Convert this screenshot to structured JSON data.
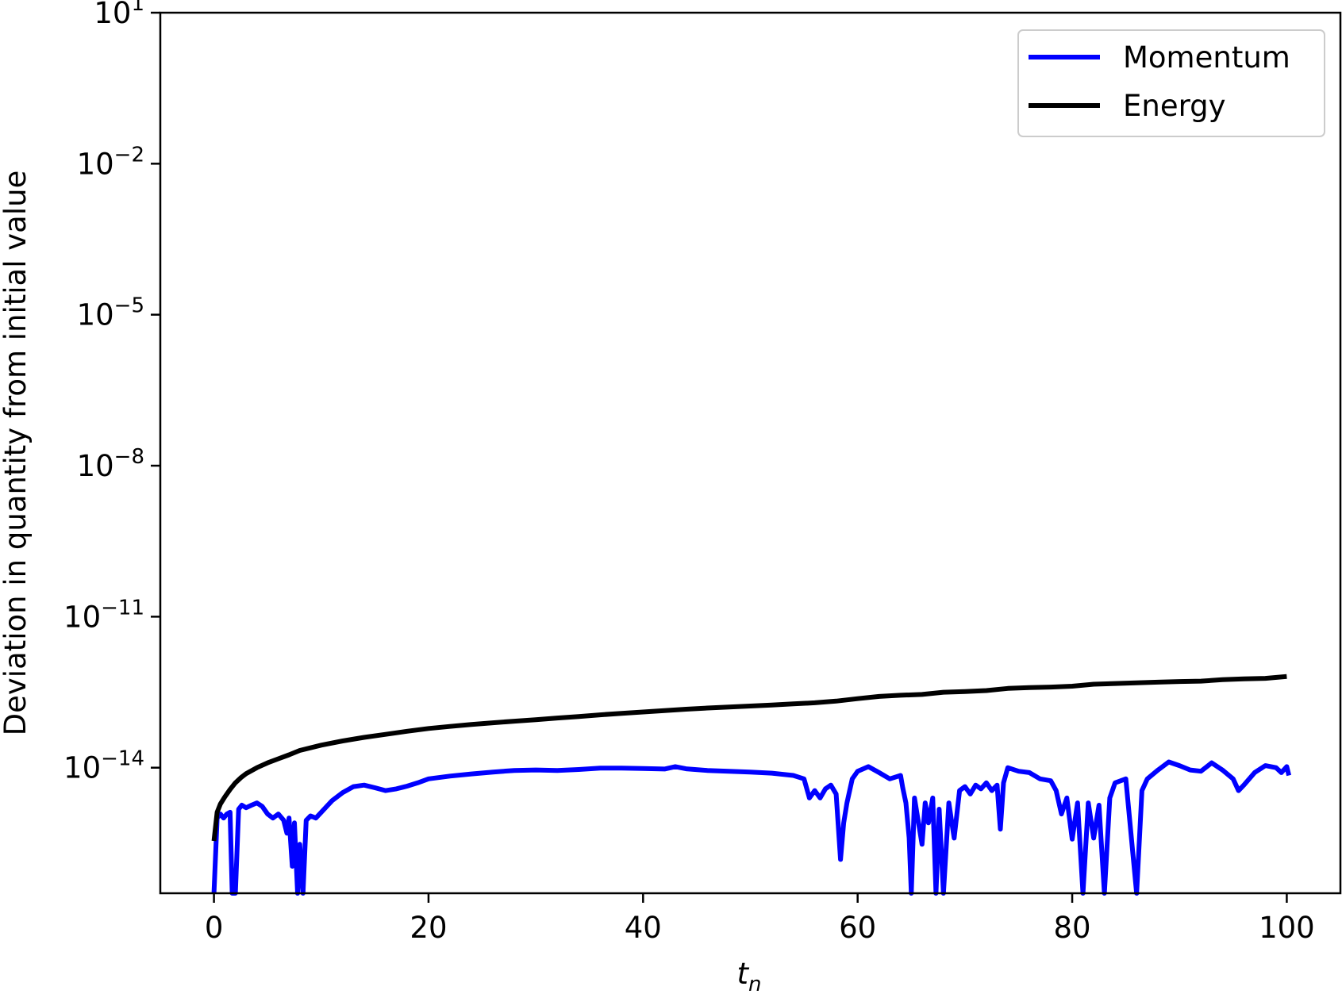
{
  "chart_data": {
    "type": "line",
    "title": "",
    "xlabel": "t",
    "xlabel_sub": "n",
    "ylabel": "Deviation in quantity from initial value",
    "xscale": "linear",
    "yscale": "log",
    "xlim": [
      -5,
      105
    ],
    "ylim": [
      3.2e-17,
      10
    ],
    "grid": false,
    "legend_position": "top-right",
    "x_ticks": [
      {
        "value": 0,
        "label": "0"
      },
      {
        "value": 20,
        "label": "20"
      },
      {
        "value": 40,
        "label": "40"
      },
      {
        "value": 60,
        "label": "60"
      },
      {
        "value": 80,
        "label": "80"
      },
      {
        "value": 100,
        "label": "100"
      }
    ],
    "y_ticks": [
      {
        "value": 10,
        "base": "10",
        "exp": "1"
      },
      {
        "value": 0.01,
        "base": "10",
        "exp": "−2"
      },
      {
        "value": 1e-05,
        "base": "10",
        "exp": "−5"
      },
      {
        "value": 1e-08,
        "base": "10",
        "exp": "−8"
      },
      {
        "value": 1e-11,
        "base": "10",
        "exp": "−11"
      },
      {
        "value": 1e-14,
        "base": "10",
        "exp": "−14"
      }
    ],
    "series": [
      {
        "name": "Momentum",
        "color": "#0000ff",
        "points": [
          [
            0,
            3.2e-17
          ],
          [
            0.3,
            1e-15
          ],
          [
            0.6,
            1.2e-15
          ],
          [
            0.9,
            1e-15
          ],
          [
            1.2,
            1.2e-15
          ],
          [
            1.5,
            1.3e-15
          ],
          [
            1.7,
            3.2e-17
          ],
          [
            2.0,
            3.2e-17
          ],
          [
            2.3,
            1.5e-15
          ],
          [
            2.6,
            1.8e-15
          ],
          [
            3.0,
            1.6e-15
          ],
          [
            3.5,
            1.8e-15
          ],
          [
            4.0,
            2e-15
          ],
          [
            4.5,
            1.7e-15
          ],
          [
            5.0,
            1.2e-15
          ],
          [
            5.5,
            1e-15
          ],
          [
            6.0,
            1.2e-15
          ],
          [
            6.5,
            9e-16
          ],
          [
            6.8,
            5e-16
          ],
          [
            7.0,
            1e-15
          ],
          [
            7.3,
            1.1e-16
          ],
          [
            7.5,
            8e-16
          ],
          [
            7.8,
            3.2e-17
          ],
          [
            8.0,
            3e-16
          ],
          [
            8.3,
            3.2e-17
          ],
          [
            8.6,
            9e-16
          ],
          [
            9.0,
            1.1e-15
          ],
          [
            9.5,
            1e-15
          ],
          [
            10.0,
            1.3e-15
          ],
          [
            11.0,
            2.2e-15
          ],
          [
            12.0,
            3.2e-15
          ],
          [
            13.0,
            4.2e-15
          ],
          [
            14.0,
            4.5e-15
          ],
          [
            15.0,
            4e-15
          ],
          [
            16.0,
            3.5e-15
          ],
          [
            17.0,
            3.8e-15
          ],
          [
            18.0,
            4.3e-15
          ],
          [
            19.0,
            5e-15
          ],
          [
            20.0,
            6e-15
          ],
          [
            22.0,
            6.8e-15
          ],
          [
            24.0,
            7.5e-15
          ],
          [
            26.0,
            8.2e-15
          ],
          [
            28.0,
            8.8e-15
          ],
          [
            30.0,
            9e-15
          ],
          [
            32.0,
            8.8e-15
          ],
          [
            34.0,
            9.2e-15
          ],
          [
            36.0,
            9.8e-15
          ],
          [
            38.0,
            9.8e-15
          ],
          [
            40.0,
            9.6e-15
          ],
          [
            42.0,
            9.4e-15
          ],
          [
            43.0,
            1.05e-14
          ],
          [
            44.0,
            9.5e-15
          ],
          [
            46.0,
            8.8e-15
          ],
          [
            48.0,
            8.5e-15
          ],
          [
            50.0,
            8.2e-15
          ],
          [
            52.0,
            7.8e-15
          ],
          [
            54.0,
            7e-15
          ],
          [
            55.0,
            6e-15
          ],
          [
            55.5,
            2.5e-15
          ],
          [
            56.0,
            3.5e-15
          ],
          [
            56.5,
            2.5e-15
          ],
          [
            57.0,
            3.8e-15
          ],
          [
            57.5,
            4.5e-15
          ],
          [
            58.0,
            3e-15
          ],
          [
            58.4,
            1.5e-16
          ],
          [
            58.7,
            8e-16
          ],
          [
            59.0,
            2e-15
          ],
          [
            59.5,
            6e-15
          ],
          [
            60.0,
            8.5e-15
          ],
          [
            61.0,
            1.05e-14
          ],
          [
            62.0,
            8e-15
          ],
          [
            63.0,
            6e-15
          ],
          [
            64.0,
            7e-15
          ],
          [
            64.2,
            4e-15
          ],
          [
            64.5,
            2e-15
          ],
          [
            64.8,
            4e-16
          ],
          [
            65.0,
            3.2e-17
          ],
          [
            65.3,
            2.5e-15
          ],
          [
            65.6,
            1e-15
          ],
          [
            66.0,
            3e-16
          ],
          [
            66.3,
            2e-15
          ],
          [
            66.6,
            8e-16
          ],
          [
            67.0,
            2.5e-15
          ],
          [
            67.3,
            3.2e-17
          ],
          [
            67.6,
            1.5e-15
          ],
          [
            68.0,
            3.2e-17
          ],
          [
            68.5,
            2e-15
          ],
          [
            69.0,
            4e-16
          ],
          [
            69.5,
            3.5e-15
          ],
          [
            70.0,
            4.2e-15
          ],
          [
            70.5,
            3e-15
          ],
          [
            71.0,
            4.5e-15
          ],
          [
            71.5,
            3.8e-15
          ],
          [
            72.0,
            5e-15
          ],
          [
            72.5,
            3.5e-15
          ],
          [
            73.0,
            4.5e-15
          ],
          [
            73.3,
            6e-16
          ],
          [
            73.6,
            5e-15
          ],
          [
            74.0,
            1e-14
          ],
          [
            75.0,
            8.5e-15
          ],
          [
            76.0,
            8e-15
          ],
          [
            77.0,
            6e-15
          ],
          [
            78.0,
            5.5e-15
          ],
          [
            78.5,
            3.5e-15
          ],
          [
            79.0,
            1.2e-15
          ],
          [
            79.5,
            2.5e-15
          ],
          [
            80.0,
            3.8e-16
          ],
          [
            80.5,
            2e-15
          ],
          [
            81.0,
            3.2e-17
          ],
          [
            81.5,
            2e-15
          ],
          [
            82.0,
            4e-16
          ],
          [
            82.5,
            1.8e-15
          ],
          [
            83.0,
            3.2e-17
          ],
          [
            83.5,
            2.5e-15
          ],
          [
            84.0,
            5e-15
          ],
          [
            85.0,
            6e-15
          ],
          [
            86.0,
            3.2e-17
          ],
          [
            86.5,
            3.5e-15
          ],
          [
            87.0,
            6e-15
          ],
          [
            88.0,
            9e-15
          ],
          [
            89.0,
            1.3e-14
          ],
          [
            90.0,
            1.1e-14
          ],
          [
            91.0,
            9e-15
          ],
          [
            92.0,
            8.5e-15
          ],
          [
            93.0,
            1.25e-14
          ],
          [
            94.0,
            9e-15
          ],
          [
            95.0,
            6e-15
          ],
          [
            95.5,
            3.5e-15
          ],
          [
            96.0,
            4.5e-15
          ],
          [
            97.0,
            8e-15
          ],
          [
            98.0,
            1.1e-14
          ],
          [
            99.0,
            1e-14
          ],
          [
            99.5,
            8e-15
          ],
          [
            100.0,
            1.05e-14
          ],
          [
            100.2,
            7e-15
          ]
        ]
      },
      {
        "name": "Energy",
        "color": "#000000",
        "points": [
          [
            0,
            3.5e-16
          ],
          [
            0.3,
            1.3e-15
          ],
          [
            0.6,
            1.9e-15
          ],
          [
            1.0,
            2.6e-15
          ],
          [
            1.5,
            3.7e-15
          ],
          [
            2.0,
            5e-15
          ],
          [
            2.5,
            6.3e-15
          ],
          [
            3.0,
            7.6e-15
          ],
          [
            4.0,
            1e-14
          ],
          [
            5.0,
            1.25e-14
          ],
          [
            6.0,
            1.5e-14
          ],
          [
            7.0,
            1.8e-14
          ],
          [
            8.0,
            2.2e-14
          ],
          [
            10.0,
            2.8e-14
          ],
          [
            12.0,
            3.4e-14
          ],
          [
            14.0,
            4e-14
          ],
          [
            16.0,
            4.6e-14
          ],
          [
            18.0,
            5.3e-14
          ],
          [
            20.0,
            6e-14
          ],
          [
            22.0,
            6.6e-14
          ],
          [
            24.0,
            7.2e-14
          ],
          [
            26.0,
            7.8e-14
          ],
          [
            28.0,
            8.4e-14
          ],
          [
            30.0,
            9e-14
          ],
          [
            32.0,
            9.7e-14
          ],
          [
            34.0,
            1.04e-13
          ],
          [
            36.0,
            1.12e-13
          ],
          [
            38.0,
            1.2e-13
          ],
          [
            40.0,
            1.28e-13
          ],
          [
            42.0,
            1.36e-13
          ],
          [
            44.0,
            1.45e-13
          ],
          [
            46.0,
            1.53e-13
          ],
          [
            48.0,
            1.6e-13
          ],
          [
            50.0,
            1.68e-13
          ],
          [
            52.0,
            1.76e-13
          ],
          [
            54.0,
            1.85e-13
          ],
          [
            56.0,
            1.95e-13
          ],
          [
            58.0,
            2.1e-13
          ],
          [
            60.0,
            2.35e-13
          ],
          [
            62.0,
            2.6e-13
          ],
          [
            64.0,
            2.75e-13
          ],
          [
            66.0,
            2.85e-13
          ],
          [
            68.0,
            3.15e-13
          ],
          [
            70.0,
            3.25e-13
          ],
          [
            72.0,
            3.4e-13
          ],
          [
            74.0,
            3.75e-13
          ],
          [
            76.0,
            3.9e-13
          ],
          [
            78.0,
            4e-13
          ],
          [
            80.0,
            4.15e-13
          ],
          [
            82.0,
            4.55e-13
          ],
          [
            84.0,
            4.7e-13
          ],
          [
            86.0,
            4.85e-13
          ],
          [
            88.0,
            5e-13
          ],
          [
            90.0,
            5.15e-13
          ],
          [
            92.0,
            5.25e-13
          ],
          [
            94.0,
            5.6e-13
          ],
          [
            96.0,
            5.8e-13
          ],
          [
            98.0,
            5.95e-13
          ],
          [
            100.0,
            6.5e-13
          ]
        ]
      }
    ]
  }
}
